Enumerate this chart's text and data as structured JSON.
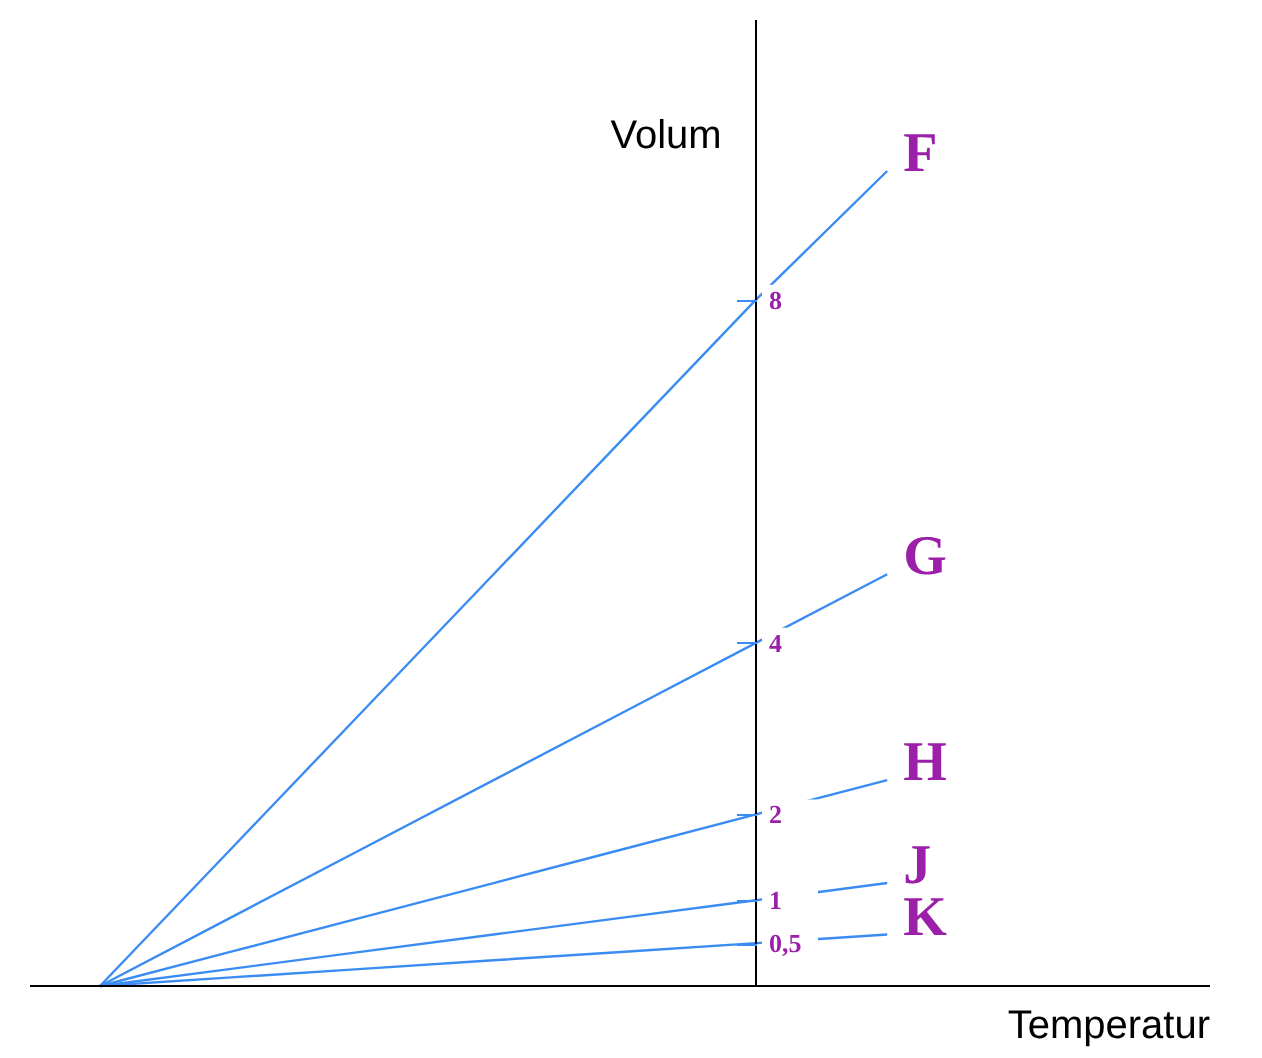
{
  "chart_data": {
    "type": "line",
    "xlabel": "Temperatur",
    "ylabel": "Volum",
    "categories": [
      null,
      null,
      null,
      null,
      null,
      null,
      null
    ],
    "ylim": [
      0,
      11.26
    ],
    "yticks": [
      {
        "value": 0.5,
        "label": "0,5"
      },
      1,
      2,
      4,
      8
    ],
    "tick_labels": "y",
    "grid": false,
    "marker": "none",
    "line_style": "solid",
    "series": [
      {
        "name": "F",
        "color": "#3b8cf2",
        "values": [
          0,
          1.6,
          3.2,
          4.8,
          6.4,
          8,
          9.5
        ]
      },
      {
        "name": "G",
        "color": "#3b8cf2",
        "values": [
          0,
          0.8,
          1.6,
          2.4,
          3.2,
          4,
          4.8
        ]
      },
      {
        "name": "H",
        "color": "#3b8cf2",
        "values": [
          0,
          0.4,
          0.8,
          1.2,
          1.6,
          2,
          2.4
        ]
      },
      {
        "name": "J",
        "color": "#3b8cf2",
        "values": [
          0,
          0.2,
          0.4,
          0.6,
          0.8,
          1,
          1.2
        ]
      },
      {
        "name": "K",
        "color": "#3b8cf2",
        "values": [
          0,
          0.1,
          0.2,
          0.3,
          0.4,
          0.5,
          0.6
        ]
      }
    ]
  }
}
